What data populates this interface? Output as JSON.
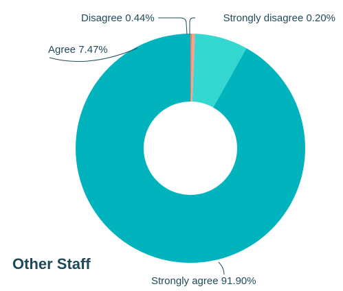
{
  "chart_data": {
    "type": "pie",
    "title": "Other Staff",
    "slices": [
      {
        "label": "Strongly agree",
        "value": 91.9,
        "display": "Strongly agree 91.90%",
        "color": "#00b3bd"
      },
      {
        "label": "Agree",
        "value": 7.47,
        "display": "Agree 7.47%",
        "color": "#34d8d0"
      },
      {
        "label": "Disagree",
        "value": 0.44,
        "display": "Disagree 0.44%",
        "color": "#f3a48b"
      },
      {
        "label": "Strongly disagree",
        "value": 0.2,
        "display": "Strongly disagree 0.20%",
        "color": "#ef7b73"
      }
    ],
    "text_color": "#1f4a5a"
  }
}
